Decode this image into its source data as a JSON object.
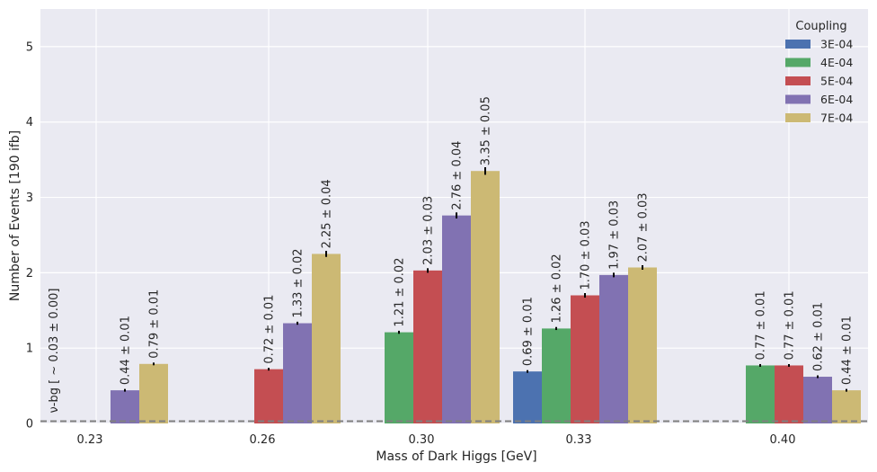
{
  "chart_data": {
    "type": "bar",
    "categories": [
      "0.23",
      "0.26",
      "0.30",
      "0.33",
      "0.40"
    ],
    "xlabel": "Mass of Dark Higgs [GeV]",
    "ylabel": "Number of Events [190 ifb]",
    "ylim": [
      0,
      5.5
    ],
    "yticks": [
      "0",
      "1",
      "2",
      "3",
      "4",
      "5"
    ],
    "grid": true,
    "legend": {
      "title": "Coupling",
      "placement": "top-right"
    },
    "series": [
      {
        "name": "3E-04",
        "color": "#4c72b0",
        "values": [
          null,
          null,
          null,
          0.69,
          null
        ],
        "errors": [
          null,
          null,
          null,
          0.01,
          null
        ],
        "labels": [
          null,
          null,
          null,
          "0.69 ± 0.01",
          null
        ]
      },
      {
        "name": "4E-04",
        "color": "#55a868",
        "values": [
          null,
          null,
          1.21,
          1.26,
          0.77
        ],
        "errors": [
          null,
          null,
          0.02,
          0.02,
          0.01
        ],
        "labels": [
          null,
          null,
          "1.21 ± 0.02",
          "1.26 ± 0.02",
          "0.77 ± 0.01"
        ]
      },
      {
        "name": "5E-04",
        "color": "#c44e52",
        "values": [
          null,
          0.72,
          2.03,
          1.7,
          0.77
        ],
        "errors": [
          null,
          0.01,
          0.03,
          0.03,
          0.01
        ],
        "labels": [
          null,
          "0.72 ± 0.01",
          "2.03 ± 0.03",
          "1.70 ± 0.03",
          "0.77 ± 0.01"
        ]
      },
      {
        "name": "6E-04",
        "color": "#8172b2",
        "values": [
          0.44,
          1.33,
          2.76,
          1.97,
          0.62
        ],
        "errors": [
          0.01,
          0.02,
          0.04,
          0.03,
          0.01
        ],
        "labels": [
          "0.44 ± 0.01",
          "1.33 ± 0.02",
          "2.76 ± 0.04",
          "1.97 ± 0.03",
          "0.62 ± 0.01"
        ]
      },
      {
        "name": "7E-04",
        "color": "#ccb974",
        "values": [
          0.79,
          2.25,
          3.35,
          2.07,
          0.44
        ],
        "errors": [
          0.01,
          0.04,
          0.05,
          0.03,
          0.01
        ],
        "labels": [
          "0.79 ± 0.01",
          "2.25 ± 0.04",
          "3.35 ± 0.05",
          "2.07 ± 0.03",
          "0.44 ± 0.01"
        ]
      }
    ],
    "background_line": {
      "value": 0.03,
      "label": "ν-bg [ ~ 0.03 ± 0.00]",
      "color": "#808080"
    }
  }
}
